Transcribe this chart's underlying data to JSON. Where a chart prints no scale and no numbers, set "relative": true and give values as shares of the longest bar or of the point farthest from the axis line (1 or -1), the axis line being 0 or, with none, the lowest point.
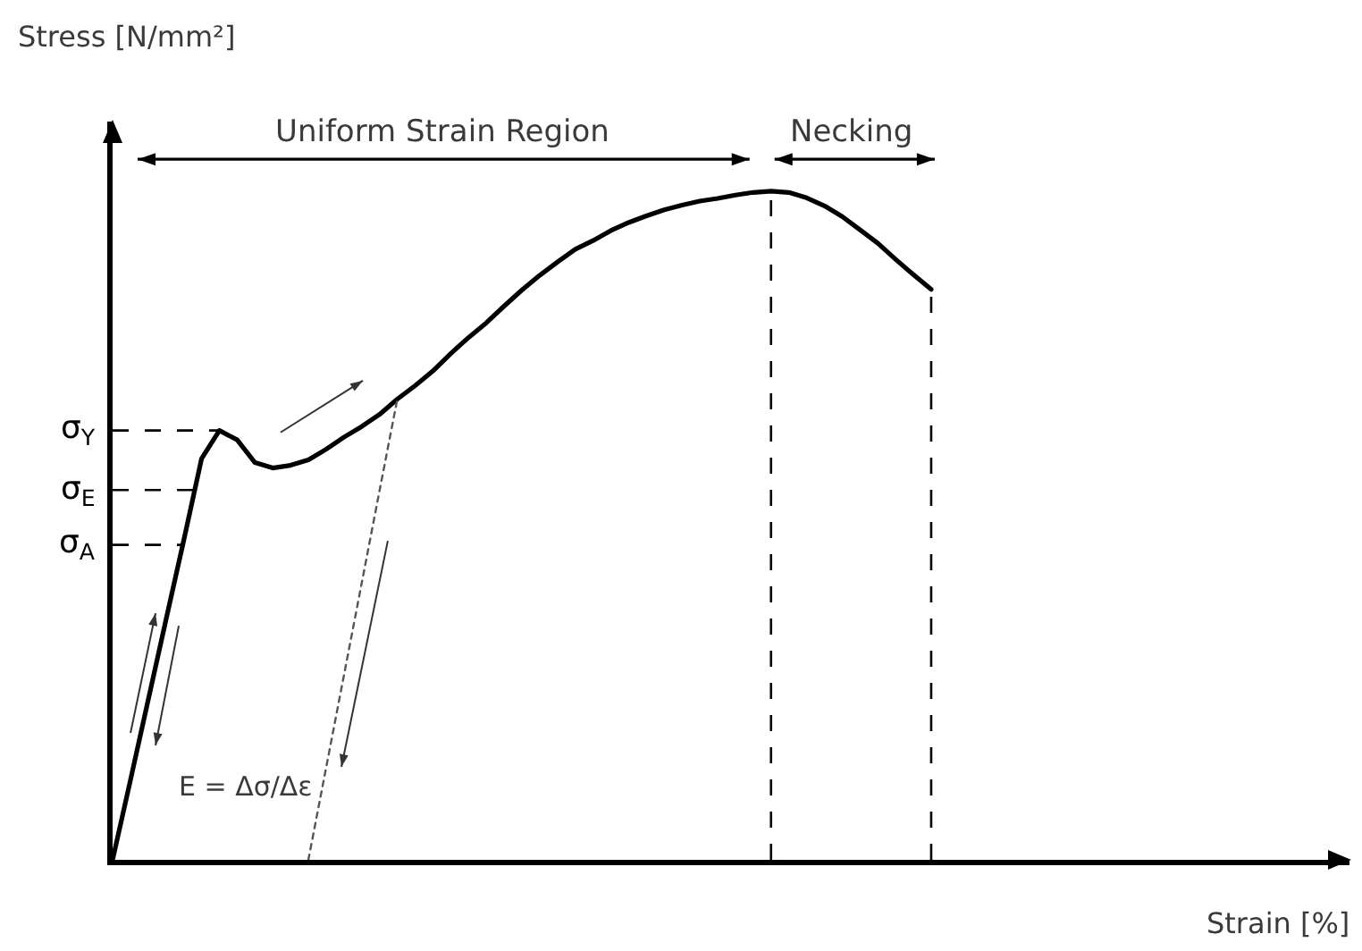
{
  "chart_data": {
    "type": "line",
    "relative": true,
    "ylabel": "Stress [N/mm²]",
    "tick_labels": false,
    "grid": false,
    "marker": "none",
    "categories": [
      null,
      null,
      null,
      null,
      null,
      null,
      null,
      null,
      null,
      null,
      null,
      null,
      null,
      null,
      null,
      null,
      null,
      null,
      null,
      null,
      null,
      null,
      null,
      null,
      null,
      null,
      null,
      null,
      null,
      null,
      null,
      null,
      null,
      null,
      null,
      null,
      null,
      null,
      null,
      null,
      null,
      null,
      null,
      null,
      null,
      null,
      null
    ],
    "series": [
      {
        "color": "#000000",
        "line_style": "solid",
        "values": [
          0,
          0.119,
          0.239,
          0.359,
          0.478,
          0.6,
          0.642,
          0.628,
          0.594,
          0.586,
          0.59,
          0.598,
          0.614,
          0.632,
          0.648,
          0.666,
          0.689,
          0.709,
          0.731,
          0.757,
          0.781,
          0.803,
          0.828,
          0.852,
          0.874,
          0.894,
          0.913,
          0.926,
          0.941,
          0.953,
          0.963,
          0.972,
          0.979,
          0.985,
          0.989,
          0.994,
          0.998,
          1,
          0.998,
          0.99,
          0.978,
          0.962,
          0.942,
          0.922,
          0.898,
          0.875,
          0.853
        ]
      },
      {
        "color": "#555555",
        "line_style": "dotted",
        "values": [
          null,
          null,
          null,
          null,
          null,
          null,
          null,
          null,
          null,
          null,
          null,
          0,
          0.138,
          0.276,
          0.414,
          0.552,
          0.689,
          null,
          null,
          null,
          null,
          null,
          null,
          null,
          null,
          null,
          null,
          null,
          null,
          null,
          null,
          null,
          null,
          null,
          null,
          null,
          null,
          null,
          null,
          null,
          null,
          null,
          null,
          null,
          null,
          null,
          null
        ]
      }
    ],
    "ref_lines": [
      {
        "axis": "y",
        "value": 0.642,
        "label": "σ$_{Y}$",
        "line_style": "dashed",
        "color": "#000000"
      },
      {
        "axis": "y",
        "value": 0.553,
        "label": "σ$_{E}$",
        "line_style": "dashed",
        "color": "#000000"
      },
      {
        "axis": "y",
        "value": 0.471,
        "label": "σ$_{A}$",
        "line_style": "dashed",
        "color": "#000000"
      }
    ],
    "annotations": [
      "Uniform Strain Region",
      "Necking",
      "E = Δσ/Δε",
      "Strain [%]"
    ]
  }
}
